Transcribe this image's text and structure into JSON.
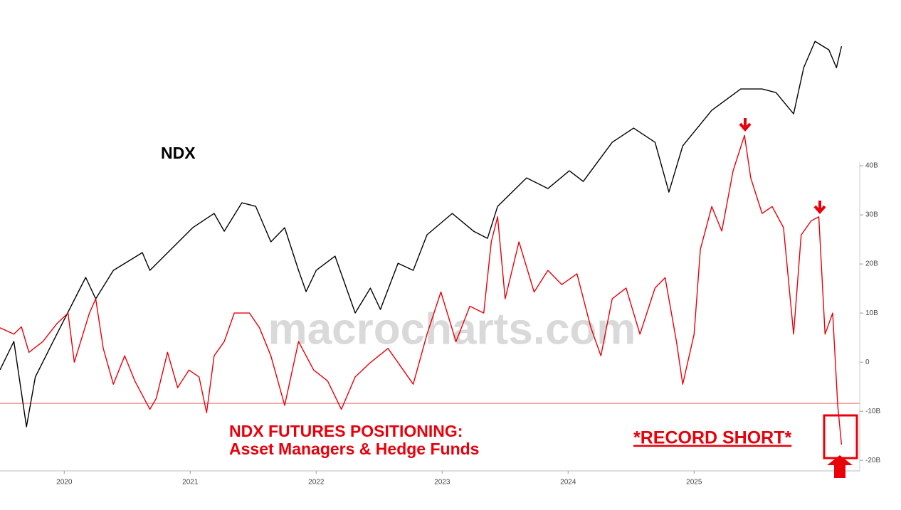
{
  "chart_data": {
    "type": "line",
    "watermark": "macrocharts.com",
    "annotations": [
      "Asset Managers & Hedge Funds",
      "*RECORD SHORT*"
    ],
    "xlim": [
      2019.99,
      2026.8
    ],
    "xticks": [
      {
        "value": 2020.5,
        "label": "2020"
      },
      {
        "value": 2021.5,
        "label": "2021"
      },
      {
        "value": 2022.5,
        "label": "2022"
      },
      {
        "value": 2023.5,
        "label": "2023"
      },
      {
        "value": 2024.5,
        "label": "2024"
      },
      {
        "value": 2025.5,
        "label": "2025"
      }
    ],
    "ylim": [
      5360,
      23930
    ],
    "y2lim": [
      -22,
      70
    ],
    "y2ticks": [
      {
        "value": 40,
        "label": "40B"
      },
      {
        "value": 30,
        "label": "30B"
      },
      {
        "value": 20,
        "label": "20B"
      },
      {
        "value": 10,
        "label": "10B"
      },
      0,
      {
        "value": -10,
        "label": "-10B"
      },
      {
        "value": -20,
        "label": "-20B"
      }
    ],
    "reference_line": -8.4,
    "series": [
      {
        "name": "NDX",
        "color": "#000000",
        "x": [
          2019.99,
          2020.1,
          2020.2,
          2020.27,
          2020.44,
          2020.67,
          2020.75,
          2020.89,
          2021.12,
          2021.18,
          2021.35,
          2021.52,
          2021.69,
          2021.77,
          2021.91,
          2022.02,
          2022.14,
          2022.25,
          2022.36,
          2022.42,
          2022.5,
          2022.65,
          2022.81,
          2022.93,
          2023.01,
          2023.15,
          2023.27,
          2023.38,
          2023.58,
          2023.75,
          2023.86,
          2023.94,
          2024.17,
          2024.34,
          2024.51,
          2024.62,
          2024.85,
          2025.02,
          2025.19,
          2025.3,
          2025.41,
          2025.64,
          2025.87,
          2026.04,
          2026.15,
          2026.29,
          2026.37,
          2026.46,
          2026.57,
          2026.63,
          2026.67
        ],
        "values": [
          9482,
          10652,
          7143,
          9190,
          10944,
          13284,
          12406,
          13576,
          14307,
          13576,
          14453,
          15330,
          15915,
          15184,
          16354,
          16208,
          14746,
          15330,
          13576,
          12699,
          13576,
          14161,
          11822,
          12845,
          11968,
          13868,
          13576,
          15038,
          15915,
          15184,
          14892,
          16208,
          17377,
          16939,
          17670,
          17231,
          18839,
          19424,
          18839,
          16792,
          18693,
          20155,
          21032,
          21032,
          20886,
          20009,
          21909,
          22991,
          22640,
          21909,
          22787
        ]
      },
      {
        "name": "NDX FUTURES POSITIONING:",
        "color": "#e8000b",
        "axis": "y2",
        "x": [
          2019.99,
          2020.1,
          2020.16,
          2020.22,
          2020.33,
          2020.44,
          2020.53,
          2020.58,
          2020.7,
          2020.75,
          2020.81,
          2020.89,
          2020.98,
          2021.06,
          2021.18,
          2021.23,
          2021.32,
          2021.4,
          2021.49,
          2021.57,
          2021.63,
          2021.69,
          2021.77,
          2021.85,
          2021.97,
          2022.05,
          2022.14,
          2022.25,
          2022.36,
          2022.48,
          2022.59,
          2022.7,
          2022.81,
          2022.93,
          2023.07,
          2023.15,
          2023.27,
          2023.38,
          2023.49,
          2023.61,
          2023.72,
          2023.83,
          2023.89,
          2023.94,
          2024.0,
          2024.11,
          2024.23,
          2024.34,
          2024.45,
          2024.57,
          2024.68,
          2024.76,
          2024.85,
          2024.96,
          2025.07,
          2025.19,
          2025.27,
          2025.36,
          2025.41,
          2025.5,
          2025.55,
          2025.64,
          2025.72,
          2025.81,
          2025.9,
          2025.95,
          2026.04,
          2026.12,
          2026.21,
          2026.29,
          2026.35,
          2026.43,
          2026.49,
          2026.54,
          2026.6,
          2026.64,
          2026.67
        ],
        "values": [
          7,
          5.7,
          7.2,
          2,
          4.2,
          7.8,
          10,
          0,
          10,
          12.9,
          2.8,
          -4.5,
          1.3,
          -3.8,
          -9.6,
          -7.4,
          2,
          -5.2,
          -1.6,
          -3,
          -10.3,
          1.3,
          4.2,
          10,
          10,
          7,
          1.3,
          -8.8,
          4.2,
          -1.6,
          -3.8,
          -9.6,
          -3,
          -0.1,
          2.8,
          -0.1,
          -4.5,
          5.7,
          14.3,
          4.2,
          11.4,
          10,
          24.5,
          29.6,
          12.9,
          24.5,
          14.3,
          18.7,
          15.8,
          18,
          7.1,
          1.3,
          12.9,
          15.1,
          5.7,
          15.1,
          17.2,
          4.2,
          -4.5,
          5.7,
          23,
          31.7,
          26.7,
          39,
          46.2,
          37.5,
          30.3,
          31.7,
          27.4,
          5.7,
          25.9,
          28.8,
          29.6,
          5.7,
          10,
          -8.8,
          -16.8
        ]
      }
    ]
  }
}
